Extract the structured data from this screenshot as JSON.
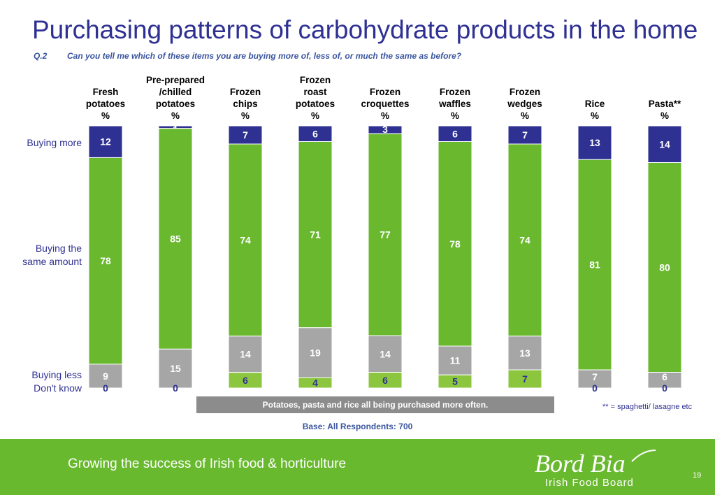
{
  "title": "Purchasing patterns of carbohydrate products in the home",
  "question": {
    "number": "Q.2",
    "text": "Can you tell me which of these items you are buying more of, less of, or much the same as before?"
  },
  "row_labels": {
    "more": "Buying more",
    "same_line1": "Buying the",
    "same_line2": "same amount",
    "less": "Buying less",
    "dont_know": "Don't know"
  },
  "colors": {
    "more": "#2e3192",
    "same": "#6ab82e",
    "less": "#a6a6a6",
    "dont_know_fill": "#8cc63f",
    "dont_know_text": "#2e3192",
    "footer": "#69b92f",
    "title": "#2e3192"
  },
  "chart_data": {
    "type": "bar",
    "stacked": true,
    "unit": "%",
    "categories": [
      [
        "Fresh",
        "potatoes",
        "%"
      ],
      [
        "Pre-prepared",
        "/chilled",
        "potatoes",
        "%"
      ],
      [
        "Frozen",
        "chips",
        "%"
      ],
      [
        "Frozen",
        "roast",
        "potatoes",
        "%"
      ],
      [
        "Frozen",
        "croquettes",
        "%"
      ],
      [
        "Frozen",
        "waffles",
        "%"
      ],
      [
        "Frozen",
        "wedges",
        "%"
      ],
      [
        "Rice",
        "%"
      ],
      [
        "Pasta**",
        "%"
      ]
    ],
    "series": [
      {
        "name": "Buying more",
        "values": [
          12,
          1,
          7,
          6,
          3,
          6,
          7,
          13,
          14
        ]
      },
      {
        "name": "Buying the same amount",
        "values": [
          78,
          85,
          74,
          71,
          77,
          78,
          74,
          81,
          80
        ]
      },
      {
        "name": "Buying less",
        "values": [
          9,
          15,
          14,
          19,
          14,
          11,
          13,
          7,
          6
        ]
      },
      {
        "name": "Don't know",
        "values": [
          0,
          0,
          6,
          4,
          6,
          5,
          7,
          0,
          0
        ]
      }
    ]
  },
  "summary": "Potatoes, pasta and rice all being purchased more often.",
  "footnote": {
    "marker": "**",
    "text": " = spaghetti/ lasagne etc"
  },
  "base": "Base:  All Respondents:  700",
  "footer": {
    "tagline": "Growing the success of Irish food & horticulture",
    "logo_text": "Bord Bia",
    "logo_sub": "Irish Food Board",
    "page_number": "19"
  }
}
